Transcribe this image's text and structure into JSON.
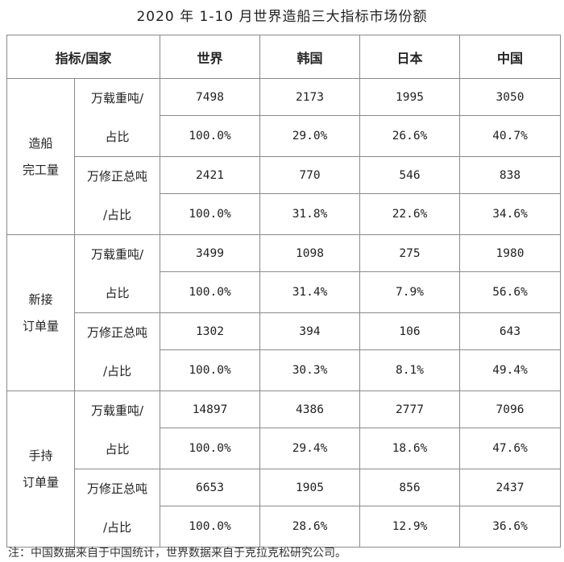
{
  "title": "2020 年 1-10 月世界造船三大指标市场份额",
  "table": {
    "header": {
      "indicator": "指标/国家",
      "columns": [
        "世界",
        "韩国",
        "日本",
        "中国"
      ]
    },
    "groups": [
      {
        "name_line1": "造船",
        "name_line2": "完工量",
        "metrics": [
          {
            "label_line1": "万载重吨/",
            "label_line2": "占比",
            "values": [
              "7498",
              "2173",
              "1995",
              "3050"
            ],
            "shares": [
              "100.0%",
              "29.0%",
              "26.6%",
              "40.7%"
            ]
          },
          {
            "label_line1": "万修正总吨",
            "label_line2": "/占比",
            "values": [
              "2421",
              "770",
              "546",
              "838"
            ],
            "shares": [
              "100.0%",
              "31.8%",
              "22.6%",
              "34.6%"
            ]
          }
        ]
      },
      {
        "name_line1": "新接",
        "name_line2": "订单量",
        "metrics": [
          {
            "label_line1": "万载重吨/",
            "label_line2": "占比",
            "values": [
              "3499",
              "1098",
              "275",
              "1980"
            ],
            "shares": [
              "100.0%",
              "31.4%",
              "7.9%",
              "56.6%"
            ]
          },
          {
            "label_line1": "万修正总吨",
            "label_line2": "/占比",
            "values": [
              "1302",
              "394",
              "106",
              "643"
            ],
            "shares": [
              "100.0%",
              "30.3%",
              "8.1%",
              "49.4%"
            ]
          }
        ]
      },
      {
        "name_line1": "手持",
        "name_line2": "订单量",
        "metrics": [
          {
            "label_line1": "万载重吨/",
            "label_line2": "占比",
            "values": [
              "14897",
              "4386",
              "2777",
              "7096"
            ],
            "shares": [
              "100.0%",
              "29.4%",
              "18.6%",
              "47.6%"
            ]
          },
          {
            "label_line1": "万修正总吨",
            "label_line2": "/占比",
            "values": [
              "6653",
              "1905",
              "856",
              "2437"
            ],
            "shares": [
              "100.0%",
              "28.6%",
              "12.9%",
              "36.6%"
            ]
          }
        ]
      }
    ]
  },
  "note": "注：中国数据来自于中国统计，世界数据来自于克拉克松研究公司。"
}
